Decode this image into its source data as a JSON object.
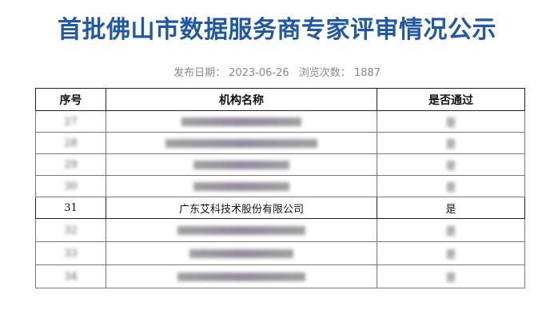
{
  "title": "首批佛山市数据服务商专家评审情况公示",
  "meta": {
    "publish_label": "发布日期：",
    "publish_date": "2023-06-26",
    "views_label": "浏览次数：",
    "views": "1887"
  },
  "table": {
    "headers": [
      "序号",
      "机构名称",
      "是否通过"
    ],
    "rows": [
      {
        "no": "27",
        "name": "",
        "passed": "是",
        "blurred": true
      },
      {
        "no": "28",
        "name": "",
        "passed": "是",
        "blurred": true
      },
      {
        "no": "29",
        "name": "",
        "passed": "是",
        "blurred": true
      },
      {
        "no": "30",
        "name": "",
        "passed": "是",
        "blurred": true
      },
      {
        "no": "31",
        "name": "广东艾科技术股份有限公司",
        "passed": "是",
        "blurred": false
      },
      {
        "no": "32",
        "name": "",
        "passed": "是",
        "blurred": true
      },
      {
        "no": "33",
        "name": "",
        "passed": "是",
        "blurred": true
      },
      {
        "no": "34",
        "name": "",
        "passed": "是",
        "blurred": true
      }
    ]
  }
}
